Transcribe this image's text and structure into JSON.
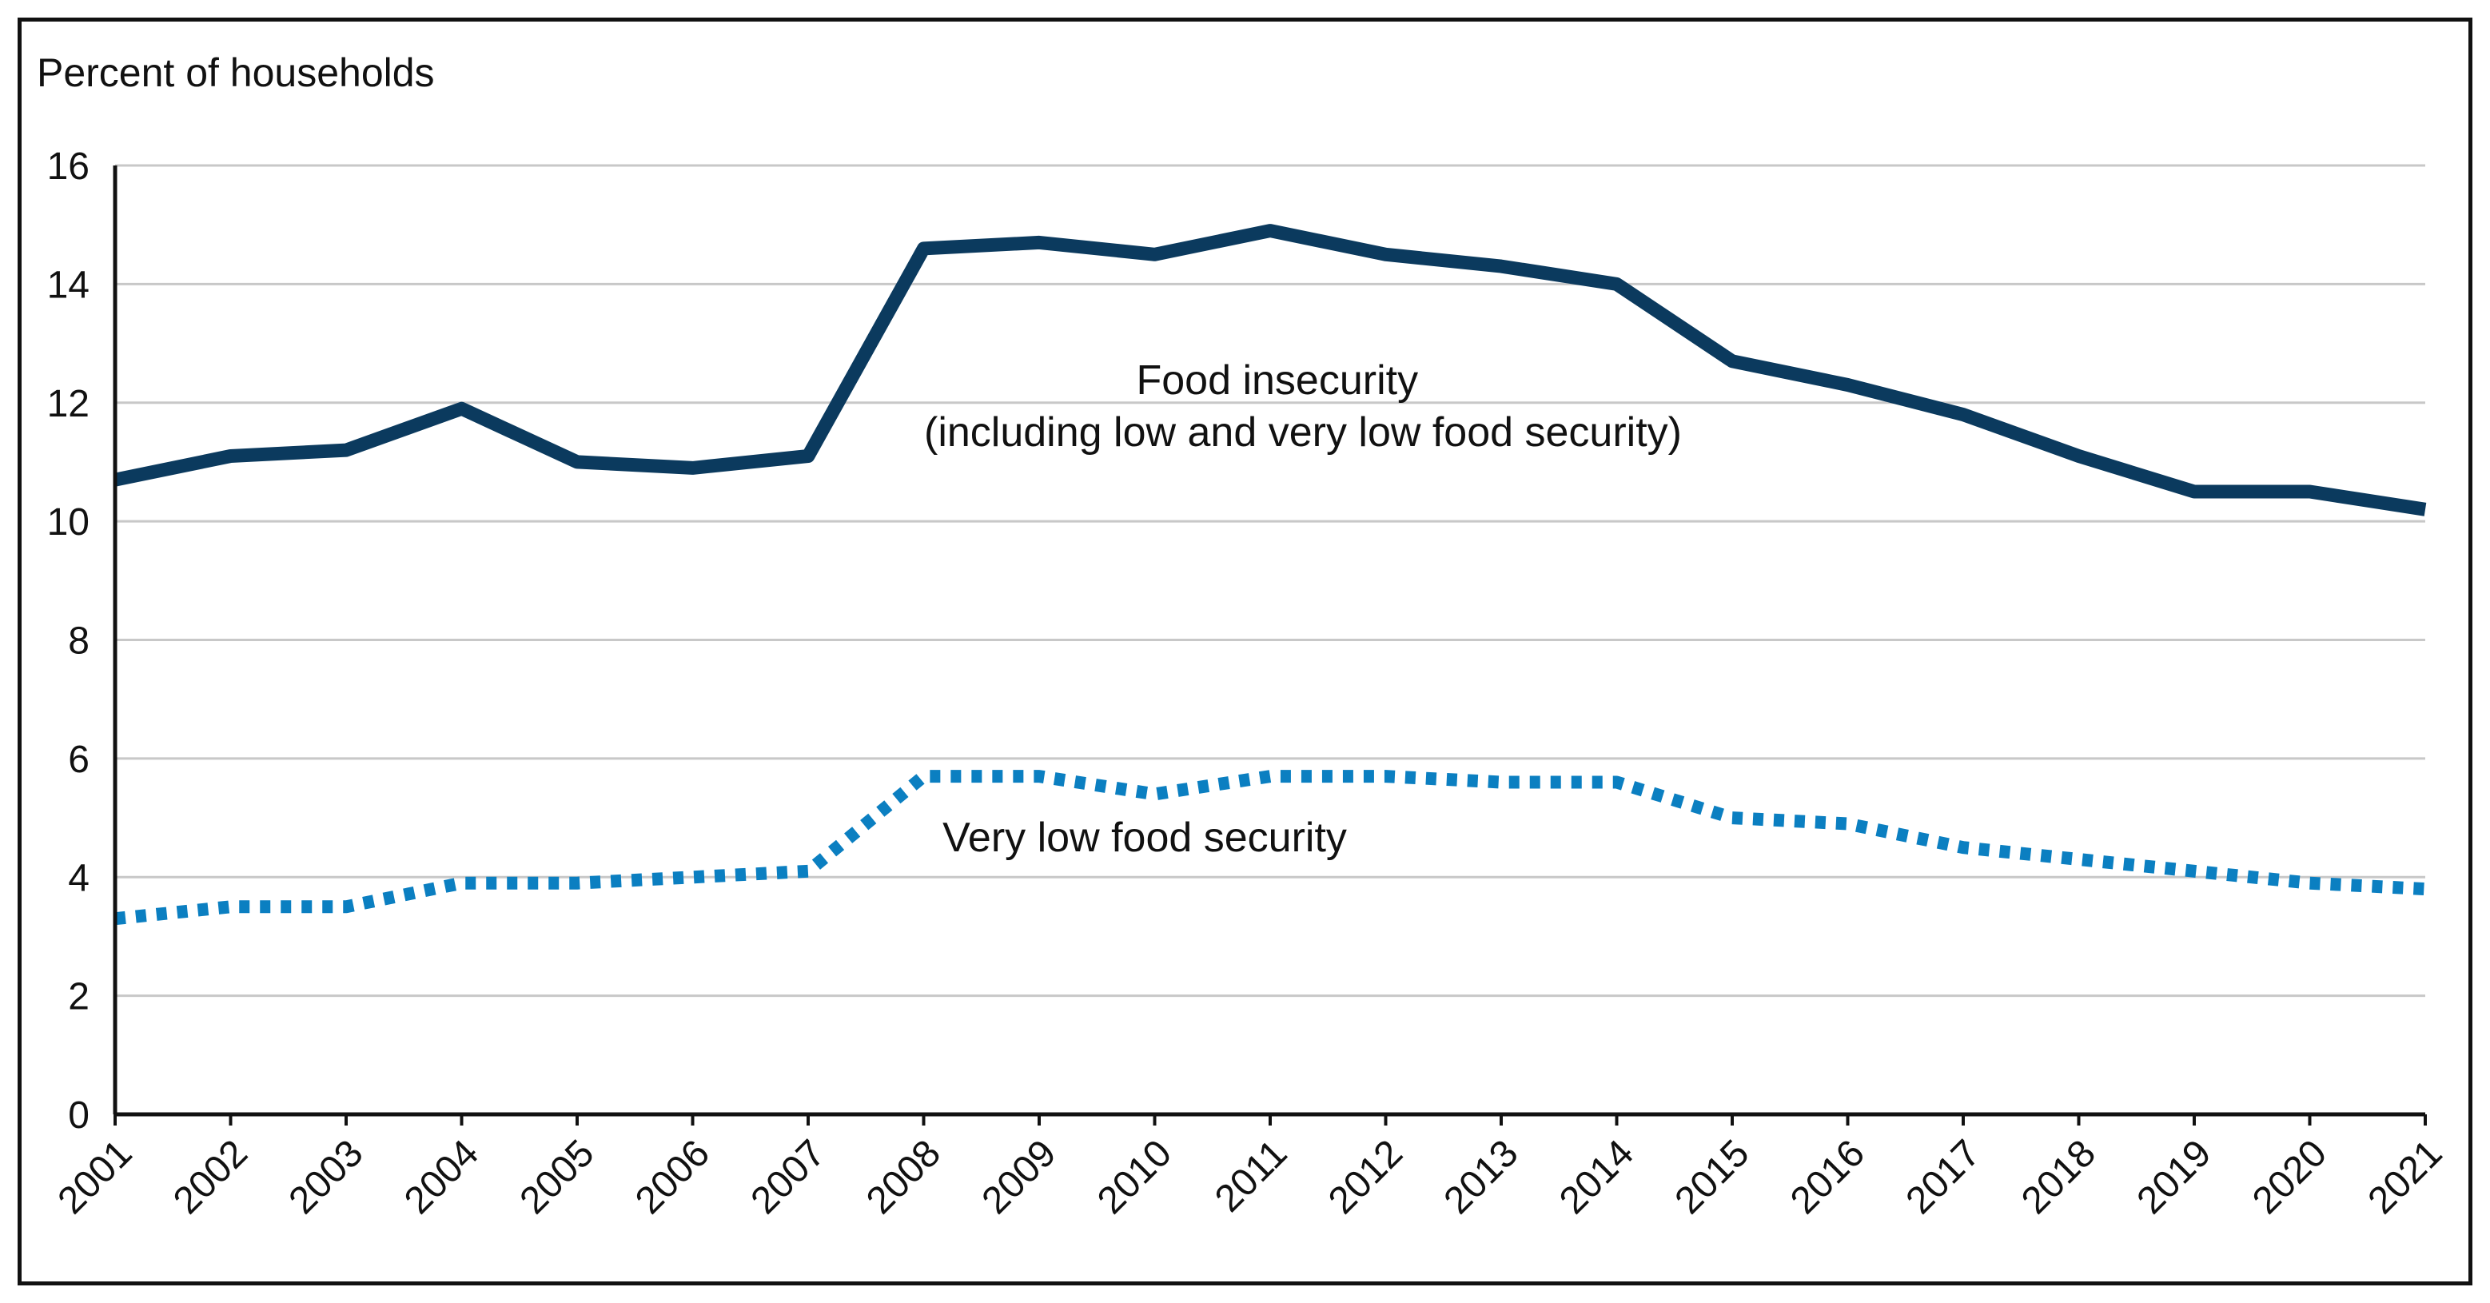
{
  "chart_data": {
    "type": "line",
    "title": "",
    "xlabel": "",
    "ylabel": "Percent of households",
    "ylim": [
      0,
      16
    ],
    "yticks": [
      0,
      2,
      4,
      6,
      8,
      10,
      12,
      14,
      16
    ],
    "grid": true,
    "categories": [
      "2001",
      "2002",
      "2003",
      "2004",
      "2005",
      "2006",
      "2007",
      "2008",
      "2009",
      "2010",
      "2011",
      "2012",
      "2013",
      "2014",
      "2015",
      "2016",
      "2017",
      "2018",
      "2019",
      "2020",
      "2021"
    ],
    "series": [
      {
        "name": "Food insecurity",
        "style": "solid",
        "color": "#0b3a5e",
        "values": [
          10.7,
          11.1,
          11.2,
          11.9,
          11.0,
          10.9,
          11.1,
          14.6,
          14.7,
          14.5,
          14.9,
          14.5,
          14.3,
          14.0,
          12.7,
          12.3,
          11.8,
          11.1,
          10.5,
          10.5,
          10.2
        ]
      },
      {
        "name": "Very low food security",
        "style": "dotted",
        "color": "#0b7fc1",
        "values": [
          3.3,
          3.5,
          3.5,
          3.9,
          3.9,
          4.0,
          4.1,
          5.7,
          5.7,
          5.4,
          5.7,
          5.7,
          5.6,
          5.6,
          5.0,
          4.9,
          4.5,
          4.3,
          4.1,
          3.9,
          3.8
        ]
      }
    ],
    "annotations": [
      {
        "series": "Food insecurity",
        "lines": [
          "Food insecurity",
          "(including low and very low food security)"
        ]
      },
      {
        "series": "Very low food security",
        "lines": [
          "Very low food security"
        ]
      }
    ]
  }
}
